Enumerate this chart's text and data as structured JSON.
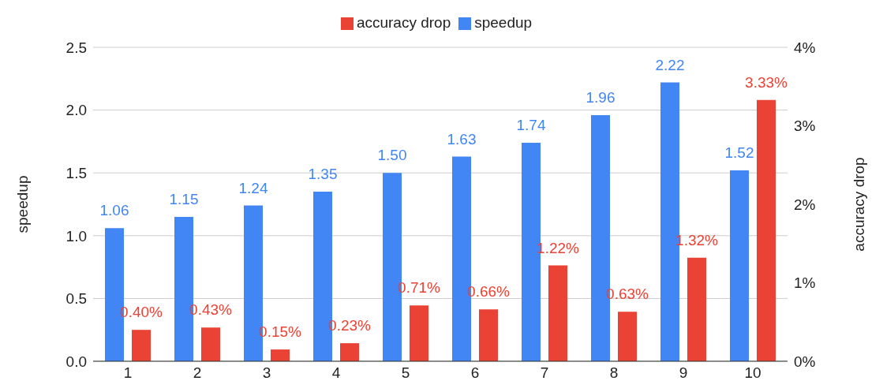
{
  "chart_data": {
    "type": "bar",
    "categories": [
      "1",
      "2",
      "3",
      "4",
      "5",
      "6",
      "7",
      "8",
      "9",
      "10"
    ],
    "ylabel": "speedup",
    "y2label": "accuracy drop",
    "series": [
      {
        "name": "speedup",
        "color": "#4285f4",
        "values": [
          1.06,
          1.15,
          1.24,
          1.35,
          1.5,
          1.63,
          1.74,
          1.96,
          2.22,
          1.52
        ],
        "value_labels": [
          "1.06",
          "1.15",
          "1.24",
          "1.35",
          "1.50",
          "1.63",
          "1.74",
          "1.96",
          "2.22",
          "1.52"
        ]
      },
      {
        "name": "accuracy drop",
        "color": "#ea4335",
        "axis": "y2",
        "values": [
          0.4,
          0.43,
          0.15,
          0.23,
          0.71,
          0.66,
          1.22,
          0.63,
          1.32,
          3.33
        ],
        "value_labels": [
          "0.40%",
          "0.43%",
          "0.15%",
          "0.23%",
          "0.71%",
          "0.66%",
          "1.22%",
          "0.63%",
          "1.32%",
          "3.33%"
        ]
      }
    ],
    "ylim": [
      0,
      2.5
    ],
    "yticks": [
      {
        "value": 0,
        "label": "0.0"
      },
      {
        "value": 0.5,
        "label": "0.5"
      },
      {
        "value": 1,
        "label": "1.0"
      },
      {
        "value": 1.5,
        "label": "1.5"
      },
      {
        "value": 2,
        "label": "2.0"
      },
      {
        "value": 2.5,
        "label": "2.5"
      }
    ],
    "y2lim": [
      0,
      4
    ],
    "y2ticks": [
      {
        "value": 0,
        "label": "0%"
      },
      {
        "value": 1,
        "label": "1%"
      },
      {
        "value": 2,
        "label": "2%"
      },
      {
        "value": 3,
        "label": "3%"
      },
      {
        "value": 4,
        "label": "4%"
      }
    ],
    "grid": "y",
    "legend": "top"
  }
}
